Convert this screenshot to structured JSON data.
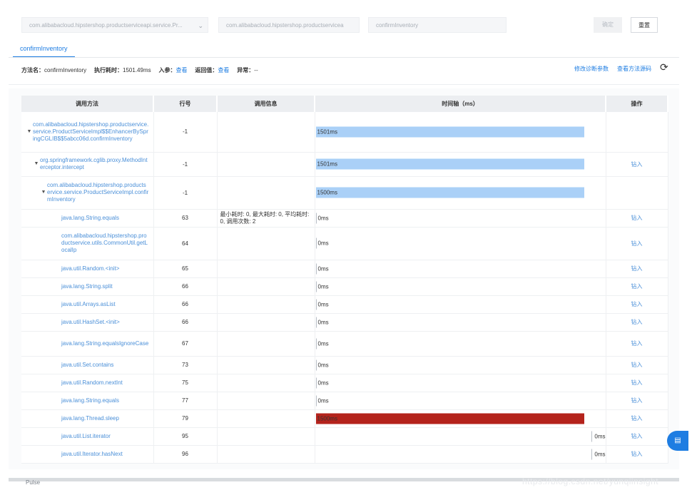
{
  "filters": {
    "class_select": "com.alibabacloud.hipstershop.productserviceapi.service.Pr...",
    "impl_select": "com.alibabacloud.hipstershop.productservicea",
    "method_select": "confirmInventory",
    "confirm_label": "确定",
    "reset_label": "重置"
  },
  "tab": {
    "label": "confirmInventory"
  },
  "info": {
    "method_label": "方法名：",
    "method_value": "confirmInventory",
    "time_label": "执行耗时：",
    "time_value": "1501.49ms",
    "params_label": "入参：",
    "params_link": "查看",
    "return_label": "返回值：",
    "return_link": "查看",
    "exception_label": "异常：",
    "exception_value": "--",
    "modify_link": "修改诊断参数",
    "source_link": "查看方法源码"
  },
  "table": {
    "headers": [
      "调用方法",
      "行号",
      "调用信息",
      "时间轴（ms）",
      "操作"
    ],
    "rows": [
      {
        "method": "com.alibabacloud.hipstershop.productservice.service.ProductServiceImpl$$EnhancerBySpringCGLIB$$5abcc06d.confirmInventory",
        "line": "-1",
        "info": "",
        "time": "1501ms",
        "action": ""
      },
      {
        "method": "org.springframework.cglib.proxy.MethodInterceptor.intercept",
        "line": "-1",
        "info": "",
        "time": "1501ms",
        "action": "钻入"
      },
      {
        "method": "com.alibabacloud.hipstershop.productservice.service.ProductServiceImpl.confirmInventory",
        "line": "-1",
        "info": "",
        "time": "1500ms",
        "action": ""
      },
      {
        "method": "java.lang.String.equals",
        "line": "63",
        "info": "最小耗时: 0, 最大耗时: 0, 平均耗时: 0, 调用次数: 2",
        "time": "0ms",
        "action": "钻入"
      },
      {
        "method": "com.alibabacloud.hipstershop.productservice.utils.CommonUtil.getLocalIp",
        "line": "64",
        "info": "",
        "time": "0ms",
        "action": "钻入"
      },
      {
        "method": "java.util.Random.<init>",
        "line": "65",
        "info": "",
        "time": "0ms",
        "action": "钻入"
      },
      {
        "method": "java.lang.String.split",
        "line": "66",
        "info": "",
        "time": "0ms",
        "action": "钻入"
      },
      {
        "method": "java.util.Arrays.asList",
        "line": "66",
        "info": "",
        "time": "0ms",
        "action": "钻入"
      },
      {
        "method": "java.util.HashSet.<init>",
        "line": "66",
        "info": "",
        "time": "0ms",
        "action": "钻入"
      },
      {
        "method": "java.lang.String.equalsIgnoreCase",
        "line": "67",
        "info": "",
        "time": "0ms",
        "action": "钻入"
      },
      {
        "method": "java.util.Set.contains",
        "line": "73",
        "info": "",
        "time": "0ms",
        "action": "钻入"
      },
      {
        "method": "java.util.Random.nextInt",
        "line": "75",
        "info": "",
        "time": "0ms",
        "action": "钻入"
      },
      {
        "method": "java.lang.String.equals",
        "line": "77",
        "info": "",
        "time": "0ms",
        "action": "钻入"
      },
      {
        "method": "java.lang.Thread.sleep",
        "line": "79",
        "info": "",
        "time": "1500ms",
        "action": "钻入"
      },
      {
        "method": "java.util.List.iterator",
        "line": "95",
        "info": "",
        "time": "0ms",
        "action": "钻入"
      },
      {
        "method": "java.util.Iterator.hasNext",
        "line": "96",
        "info": "",
        "time": "0ms",
        "action": "钻入"
      }
    ]
  },
  "watermark": "https://blog.csdn.net/yunqiinsight",
  "bottom_label": "Pulse",
  "fab_icon": "doc-icon",
  "colors": {
    "accent": "#1e7de2",
    "bar": "#aad0f7",
    "bar_hot": "#b4231c"
  }
}
